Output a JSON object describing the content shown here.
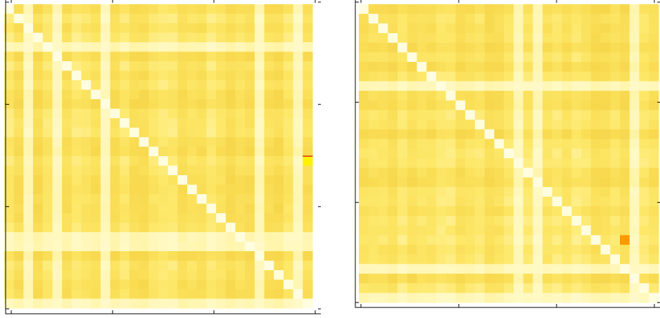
{
  "chart_data": [
    {
      "type": "heatmap",
      "name": "left-matrix",
      "rows": 32,
      "cols": 32,
      "colormap": [
        "#fffde0",
        "#fff3a0",
        "#fde86a",
        "#f9dc52",
        "#f3cf44"
      ],
      "highlight_color": "#fff200",
      "accent_color": "#e35b1c",
      "diagonal_value": 0,
      "values": [],
      "highlights": [
        {
          "row": 16,
          "col": 31,
          "value": 1.0
        }
      ],
      "seed": 17,
      "xticks": [
        "",
        "",
        "",
        ""
      ],
      "yticks": [
        "",
        "",
        "",
        ""
      ],
      "grid": false
    },
    {
      "type": "heatmap",
      "name": "right-matrix",
      "rows": 31,
      "cols": 31,
      "colormap": [
        "#fffde0",
        "#fff3a0",
        "#fde86a",
        "#f9dc52",
        "#f3cf44"
      ],
      "highlight_color": "#ff9900",
      "diagonal_value": 0,
      "values": [],
      "highlights": [
        {
          "row": 24,
          "col": 27,
          "value": 1.0
        }
      ],
      "seed": 41,
      "xticks": [
        "",
        "",
        "",
        ""
      ],
      "yticks": [
        "",
        "",
        "",
        ""
      ],
      "grid": false
    }
  ]
}
